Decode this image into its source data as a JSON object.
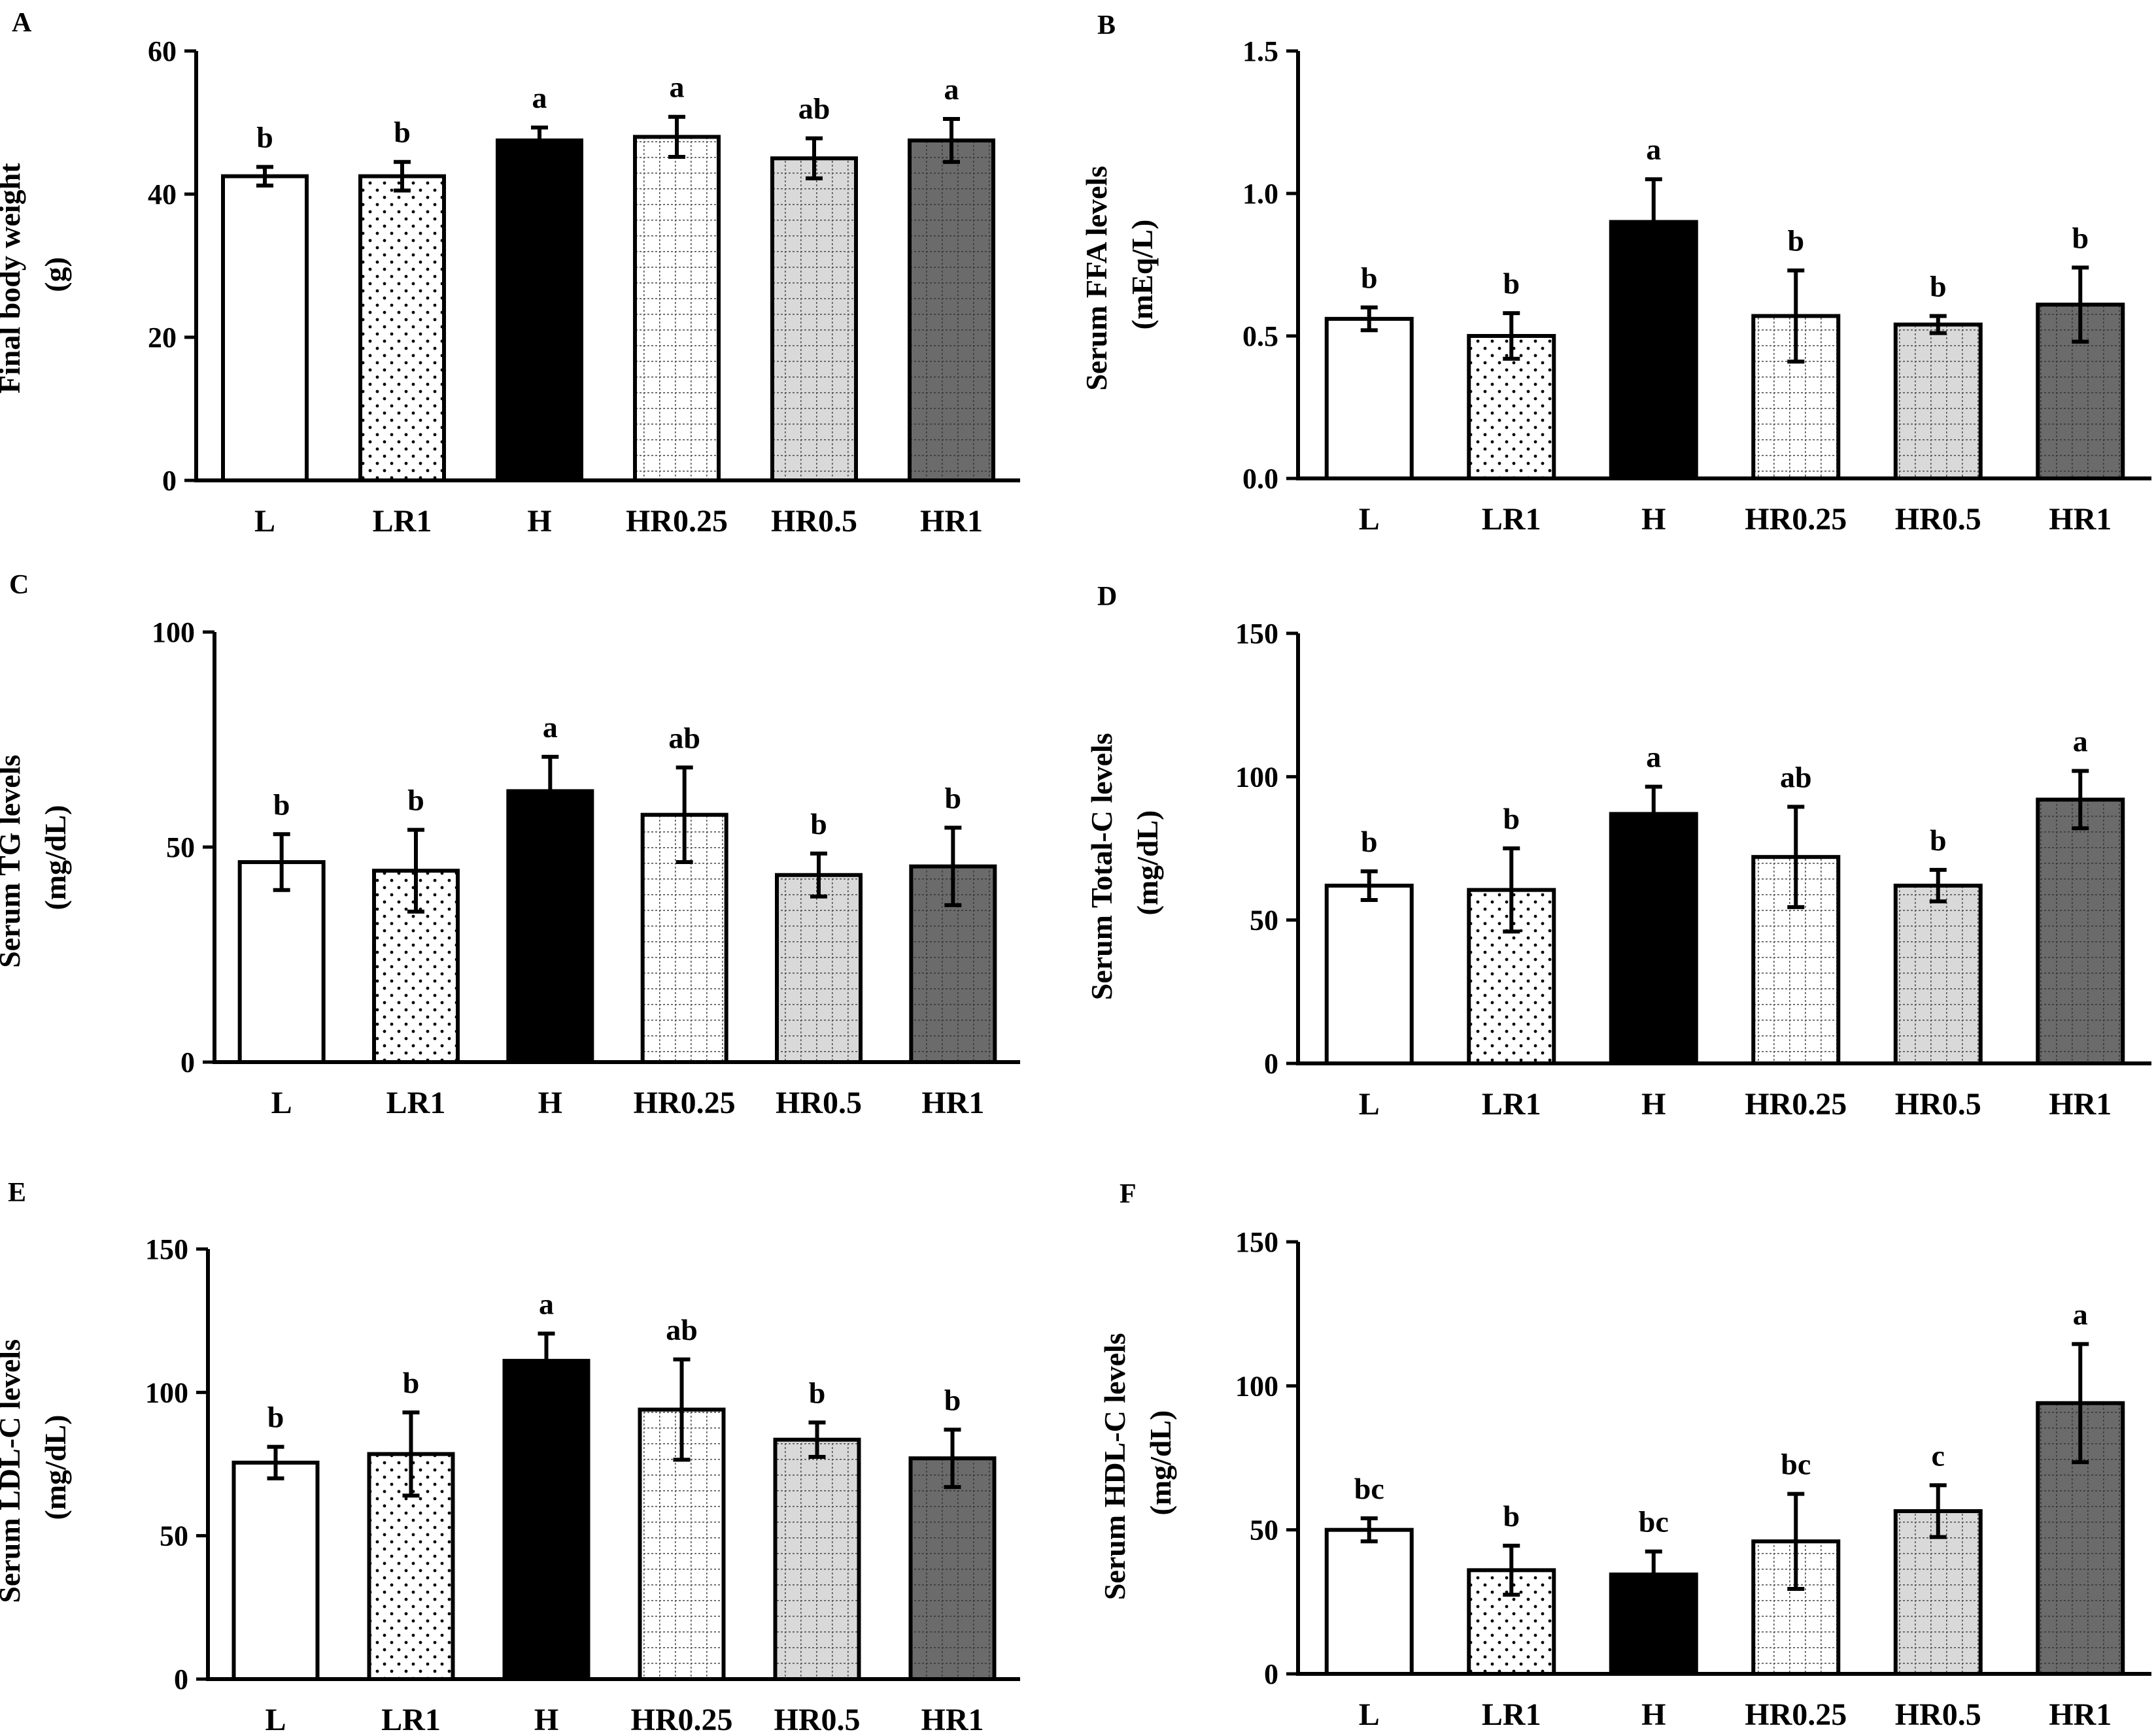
{
  "chart_data": [
    {
      "type": "bar",
      "panel": "A",
      "ylabel_lines": [
        "Final body weight",
        "(g)"
      ],
      "categories": [
        "L",
        "LR1",
        "H",
        "HR0.25",
        "HR0.5",
        "HR1"
      ],
      "values": [
        42.5,
        42.5,
        47.5,
        48,
        45,
        47.5
      ],
      "errors": [
        1.3,
        2.0,
        1.8,
        2.8,
        2.8,
        3.0
      ],
      "letters": [
        "b",
        "b",
        "a",
        "a",
        "ab",
        "a"
      ],
      "ylim": [
        0,
        60
      ],
      "yticks": [
        0,
        20,
        40,
        60
      ],
      "ytick_labels": [
        "0",
        "20",
        "40",
        "60"
      ]
    },
    {
      "type": "bar",
      "panel": "B",
      "ylabel_lines": [
        "Serum FFA levels",
        "(mEq/L)"
      ],
      "categories": [
        "L",
        "LR1",
        "H",
        "HR0.25",
        "HR0.5",
        "HR1"
      ],
      "values": [
        0.56,
        0.5,
        0.9,
        0.57,
        0.54,
        0.61
      ],
      "errors": [
        0.04,
        0.08,
        0.15,
        0.16,
        0.03,
        0.13
      ],
      "letters": [
        "b",
        "b",
        "a",
        "b",
        "b",
        "b"
      ],
      "ylim": [
        0,
        1.5
      ],
      "yticks": [
        0,
        0.5,
        1.0,
        1.5
      ],
      "ytick_labels": [
        "0.0",
        "0.5",
        "1.0",
        "1.5"
      ]
    },
    {
      "type": "bar",
      "panel": "C",
      "ylabel_lines": [
        "Serum TG levels",
        "(mg/dL)"
      ],
      "categories": [
        "L",
        "LR1",
        "H",
        "HR0.25",
        "HR0.5",
        "HR1"
      ],
      "values": [
        46.5,
        44.5,
        63,
        57.5,
        43.5,
        45.5
      ],
      "errors": [
        6.5,
        9.5,
        8,
        11,
        5,
        9
      ],
      "letters": [
        "b",
        "b",
        "a",
        "ab",
        "b",
        "b"
      ],
      "ylim": [
        0,
        100
      ],
      "yticks": [
        0,
        50,
        100
      ],
      "ytick_labels": [
        "0",
        "50",
        "100"
      ]
    },
    {
      "type": "bar",
      "panel": "D",
      "ylabel_lines": [
        "Serum Total-C levels",
        "(mg/dL)"
      ],
      "categories": [
        "L",
        "LR1",
        "H",
        "HR0.25",
        "HR0.5",
        "HR1"
      ],
      "values": [
        62,
        60.5,
        87,
        72,
        62,
        92
      ],
      "errors": [
        5,
        14.5,
        9.5,
        17.5,
        5.5,
        10
      ],
      "letters": [
        "b",
        "b",
        "a",
        "ab",
        "b",
        "a"
      ],
      "ylim": [
        0,
        150
      ],
      "yticks": [
        0,
        50,
        100,
        150
      ],
      "ytick_labels": [
        "0",
        "50",
        "100",
        "150"
      ]
    },
    {
      "type": "bar",
      "panel": "E",
      "ylabel_lines": [
        "Serum LDL-C levels",
        "(mg/dL)"
      ],
      "categories": [
        "L",
        "LR1",
        "H",
        "HR0.25",
        "HR0.5",
        "HR1"
      ],
      "values": [
        75.5,
        78.5,
        111,
        94,
        83.5,
        77
      ],
      "errors": [
        5.5,
        14.5,
        9.5,
        17.5,
        6,
        10
      ],
      "letters": [
        "b",
        "b",
        "a",
        "ab",
        "b",
        "b"
      ],
      "ylim": [
        0,
        150
      ],
      "yticks": [
        0,
        50,
        100,
        150
      ],
      "ytick_labels": [
        "0",
        "50",
        "100",
        "150"
      ]
    },
    {
      "type": "bar",
      "panel": "F",
      "ylabel_lines": [
        "Serum HDL-C levels",
        "(mg/dL)"
      ],
      "categories": [
        "L",
        "LR1",
        "H",
        "HR0.25",
        "HR0.5",
        "HR1"
      ],
      "values": [
        50,
        36,
        34.5,
        46,
        56.5,
        94
      ],
      "errors": [
        4,
        8.5,
        8,
        16.5,
        9,
        20.5
      ],
      "letters": [
        "bc",
        "b",
        "bc",
        "bc",
        "c",
        "a"
      ],
      "ylim": [
        0,
        150
      ],
      "yticks": [
        0,
        50,
        100,
        150
      ],
      "ytick_labels": [
        "0",
        "50",
        "100",
        "150"
      ]
    }
  ],
  "bar_styles": [
    {
      "fill": "#ffffff",
      "pattern": "none"
    },
    {
      "fill": "#ffffff",
      "pattern": "dots"
    },
    {
      "fill": "#000000",
      "pattern": "none"
    },
    {
      "fill": "#ffffff",
      "pattern": "grid"
    },
    {
      "fill": "#d9d9d9",
      "pattern": "grid"
    },
    {
      "fill": "#6b6b6b",
      "pattern": "grid"
    }
  ]
}
